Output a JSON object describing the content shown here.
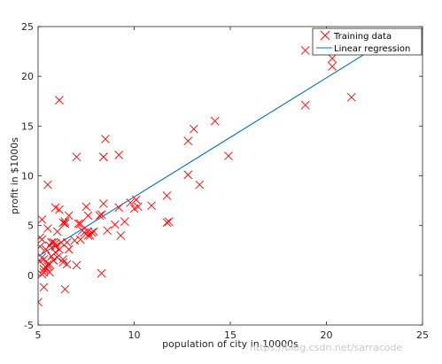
{
  "chart_data": {
    "type": "scatter",
    "title": "",
    "xlabel": "population of city in 10000s",
    "ylabel": "profit in $1000s",
    "xlim": [
      5,
      25
    ],
    "ylim": [
      -5,
      25
    ],
    "xticks": [
      5,
      10,
      15,
      20,
      25
    ],
    "yticks": [
      -5,
      0,
      5,
      10,
      15,
      20,
      25
    ],
    "grid": false,
    "legend_position": "top-right",
    "series": [
      {
        "name": "Training data",
        "kind": "scatter",
        "marker": "x",
        "color": "#ff0000",
        "points": [
          [
            6.1,
            17.6
          ],
          [
            5.5,
            9.1
          ],
          [
            8.5,
            13.7
          ],
          [
            7.0,
            11.9
          ],
          [
            5.9,
            6.8
          ],
          [
            8.4,
            11.9
          ],
          [
            5.8,
            3.3
          ],
          [
            8.4,
            11.9
          ],
          [
            6.5,
            3.3
          ],
          [
            5.1,
            3.8
          ],
          [
            5.7,
            3.3
          ],
          [
            14.2,
            15.5
          ],
          [
            5.7,
            3.3
          ],
          [
            8.4,
            7.2
          ],
          [
            6.4,
            5.4
          ],
          [
            5.3,
            0.6
          ],
          [
            6.4,
            5.2
          ],
          [
            5.6,
            3.0
          ],
          [
            12.8,
            13.5
          ],
          [
            5.6,
            0.3
          ],
          [
            5.2,
            3.6
          ],
          [
            6.5,
            1.1
          ],
          [
            5.7,
            1.9
          ],
          [
            5.1,
            1.4
          ],
          [
            5.1,
            2.9
          ],
          [
            5.8,
            1.5
          ],
          [
            6.1,
            2.6
          ],
          [
            5.6,
            1.1
          ],
          [
            6.0,
            1.8
          ],
          [
            5.0,
            -2.7
          ],
          [
            5.3,
            -1.2
          ],
          [
            6.3,
            5.3
          ],
          [
            7.2,
            5.2
          ],
          [
            7.6,
            6.0
          ],
          [
            8.3,
            0.2
          ],
          [
            7.3,
            4.5
          ],
          [
            9.2,
            6.8
          ],
          [
            7.4,
            4.3
          ],
          [
            7.6,
            4.4
          ],
          [
            8.3,
            6.1
          ],
          [
            10.1,
            7.6
          ],
          [
            11.7,
            8.0
          ],
          [
            9.3,
            4.0
          ],
          [
            5.2,
            0.1
          ],
          [
            5.7,
            1.9
          ],
          [
            13.4,
            9.1
          ],
          [
            5.2,
            1.8
          ],
          [
            5.3,
            0.6
          ],
          [
            6.0,
            4.4
          ],
          [
            6.4,
            -1.4
          ],
          [
            7.1,
            5.2
          ],
          [
            7.6,
            4.0
          ],
          [
            6.3,
            1.3
          ],
          [
            5.4,
            0.8
          ],
          [
            7.0,
            1.0
          ],
          [
            6.2,
            3.3
          ],
          [
            9.2,
            12.1
          ],
          [
            10.0,
            6.7
          ],
          [
            11.8,
            5.4
          ],
          [
            13.1,
            14.7
          ],
          [
            12.8,
            10.1
          ],
          [
            14.9,
            12.0
          ],
          [
            18.9,
            22.6
          ],
          [
            20.3,
            21.8
          ],
          [
            20.3,
            21.0
          ],
          [
            21.3,
            17.9
          ],
          [
            18.9,
            17.1
          ],
          [
            6.4,
            5.2
          ],
          [
            9.0,
            5.1
          ],
          [
            9.5,
            5.4
          ],
          [
            7.7,
            4.0
          ],
          [
            8.6,
            4.5
          ],
          [
            9.8,
            7.3
          ],
          [
            10.2,
            6.9
          ],
          [
            10.9,
            7.0
          ],
          [
            11.7,
            5.3
          ],
          [
            7.5,
            6.9
          ],
          [
            7.8,
            4.3
          ],
          [
            8.2,
            6.0
          ],
          [
            5.9,
            3.2
          ],
          [
            5.5,
            1.1
          ],
          [
            6.9,
            3.5
          ],
          [
            5.9,
            2.9
          ],
          [
            5.3,
            1.6
          ],
          [
            5.2,
            5.6
          ],
          [
            5.5,
            4.7
          ],
          [
            5.4,
            2.6
          ],
          [
            5.5,
            0.9
          ],
          [
            6.6,
            6.0
          ],
          [
            7.9,
            4.4
          ],
          [
            7.2,
            3.6
          ],
          [
            6.6,
            2.6
          ],
          [
            5.8,
            1.5
          ],
          [
            6.1,
            6.6
          ],
          [
            5.9,
            2.3
          ],
          [
            5.3,
            0.3
          ],
          [
            6.3,
            1.6
          ]
        ]
      },
      {
        "name": "Linear regression",
        "kind": "line",
        "color": "#0072bd",
        "x": [
          5.0,
          22.3
        ],
        "y": [
          1.9,
          22.6
        ]
      }
    ]
  },
  "watermark_text": "https://blog.csdn.net/sarracode"
}
